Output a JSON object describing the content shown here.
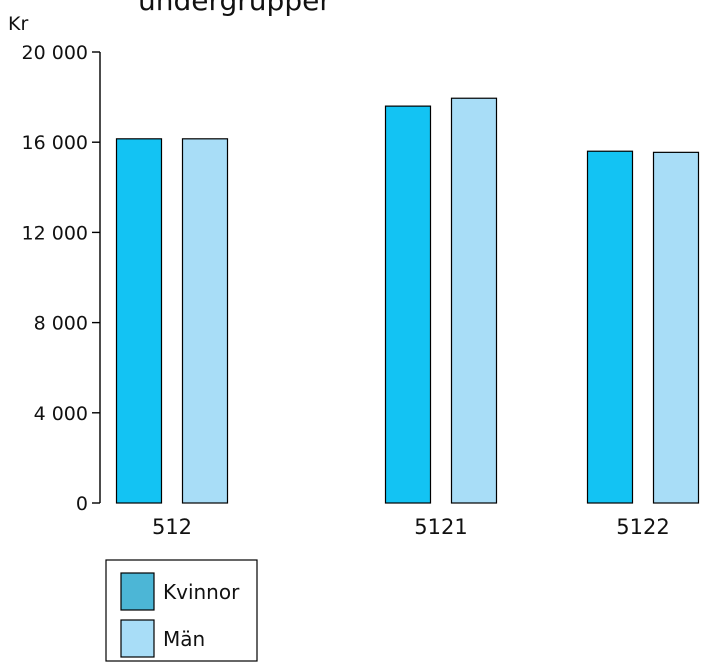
{
  "chart_data": {
    "type": "bar",
    "title": "undergrupper",
    "ylabel": "Kr",
    "xlabel": "",
    "ylim": [
      0,
      20000
    ],
    "yticks": [
      0,
      4000,
      8000,
      12000,
      16000,
      20000
    ],
    "ytick_labels": [
      "0",
      "4 000",
      "8 000",
      "12 000",
      "16 000",
      "20 000"
    ],
    "categories": [
      "512",
      "5121",
      "5122"
    ],
    "series": [
      {
        "name": "Kvinnor",
        "values": [
          16150,
          17600,
          15600
        ],
        "color": "#13c3f3"
      },
      {
        "name": "Män",
        "values": [
          16150,
          17950,
          15550
        ],
        "color": "#a8ddf7"
      }
    ],
    "legend_swatch_colors": [
      "#4cb6d6",
      "#a8ddf7"
    ],
    "legend_position": "bottom-left",
    "grid": false
  }
}
